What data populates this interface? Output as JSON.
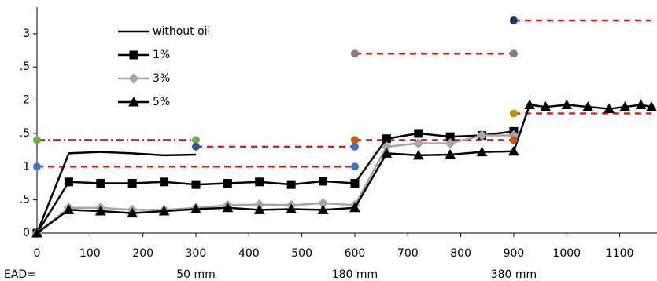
{
  "chart_data": {
    "type": "line",
    "xlim": [
      0,
      1160
    ],
    "ylim": [
      0,
      3.4
    ],
    "xticks": [
      0,
      100,
      200,
      300,
      400,
      500,
      600,
      700,
      800,
      900,
      1000,
      1100
    ],
    "yticks": [
      0,
      {
        "value": 0.5,
        "label": ".5"
      },
      1,
      {
        "value": 1.5,
        "label": ".5"
      },
      2,
      {
        "value": 2.5,
        "label": ".5"
      },
      3
    ],
    "series": [
      {
        "name": "without oil",
        "color": "#000000",
        "marker": "none",
        "x": [
          0,
          60,
          120,
          180,
          240,
          300
        ],
        "values": [
          0,
          1.2,
          1.22,
          1.2,
          1.17,
          1.18
        ]
      },
      {
        "name": "1%",
        "color": "#000000",
        "marker": "square",
        "x": [
          0,
          60,
          120,
          180,
          240,
          300,
          360,
          420,
          480,
          540,
          600,
          660,
          720,
          780,
          840,
          900
        ],
        "values": [
          0,
          0.77,
          0.75,
          0.75,
          0.77,
          0.73,
          0.75,
          0.77,
          0.73,
          0.78,
          0.75,
          1.42,
          1.5,
          1.45,
          1.47,
          1.53
        ]
      },
      {
        "name": "3%",
        "color": "#a6a6a6",
        "marker": "diamond",
        "x": [
          0,
          60,
          120,
          180,
          240,
          300,
          360,
          420,
          480,
          540,
          600,
          660,
          720,
          780,
          840,
          900
        ],
        "values": [
          0,
          0.38,
          0.38,
          0.35,
          0.35,
          0.38,
          0.42,
          0.43,
          0.42,
          0.45,
          0.42,
          1.3,
          1.35,
          1.35,
          1.47,
          1.47
        ]
      },
      {
        "name": "5%",
        "color": "#000000",
        "marker": "triangle",
        "x": [
          0,
          60,
          120,
          180,
          240,
          300,
          360,
          420,
          480,
          540,
          600,
          660,
          720,
          780,
          840,
          900,
          930,
          960,
          1000,
          1040,
          1080,
          1110,
          1140,
          1160
        ],
        "values": [
          0,
          0.35,
          0.33,
          0.3,
          0.33,
          0.36,
          0.38,
          0.35,
          0.36,
          0.35,
          0.38,
          1.2,
          1.17,
          1.18,
          1.22,
          1.23,
          1.93,
          1.9,
          1.93,
          1.9,
          1.87,
          1.9,
          1.93,
          1.9
        ]
      }
    ],
    "reference_lines": [
      {
        "x": [
          0,
          600
        ],
        "values": [
          1,
          1
        ],
        "color": "#e31a1c",
        "style": "dash"
      },
      {
        "x": [
          0,
          300
        ],
        "values": [
          1.4,
          1.4
        ],
        "color": "#e31a1c",
        "style": "dashdot"
      },
      {
        "x": [
          300,
          600
        ],
        "values": [
          1.3,
          1.3
        ],
        "color": "#e31a1c",
        "style": "dash"
      },
      {
        "x": [
          600,
          900
        ],
        "values": [
          1.4,
          1.4
        ],
        "color": "#e31a1c",
        "style": "dash"
      },
      {
        "x": [
          600,
          900
        ],
        "values": [
          2.7,
          2.7
        ],
        "color": "#e31a1c",
        "style": "dash"
      },
      {
        "x": [
          900,
          1160
        ],
        "values": [
          1.8,
          1.8
        ],
        "color": "#e31a1c",
        "style": "dash"
      },
      {
        "x": [
          900,
          1160
        ],
        "values": [
          3.2,
          3.2
        ],
        "color": "#e31a1c",
        "style": "dash"
      }
    ],
    "points": [
      {
        "x": 0,
        "value": 1.4,
        "color": "#70ad47"
      },
      {
        "x": 300,
        "value": 1.4,
        "color": "#70ad47"
      },
      {
        "x": 0,
        "value": 1,
        "color": "#4472c4"
      },
      {
        "x": 300,
        "value": 1.3,
        "color": "#2f5597"
      },
      {
        "x": 600,
        "value": 1.3,
        "color": "#4472c4"
      },
      {
        "x": 600,
        "value": 1,
        "color": "#4472c4"
      },
      {
        "x": 600,
        "value": 2.7,
        "color": "#7f7f7f"
      },
      {
        "x": 900,
        "value": 2.7,
        "color": "#7f7f7f"
      },
      {
        "x": 600,
        "value": 1.4,
        "color": "#c55a11"
      },
      {
        "x": 900,
        "value": 1.4,
        "color": "#c55a11"
      },
      {
        "x": 900,
        "value": 1.8,
        "color": "#bf9000"
      },
      {
        "x": 900,
        "value": 3.2,
        "color": "#1f3864"
      }
    ],
    "ead_label": "EAD=",
    "annotations": [
      {
        "text": "50 mm",
        "x": 300
      },
      {
        "text": "180 mm",
        "x": 600
      },
      {
        "text": "380 mm",
        "x": 900
      }
    ]
  }
}
